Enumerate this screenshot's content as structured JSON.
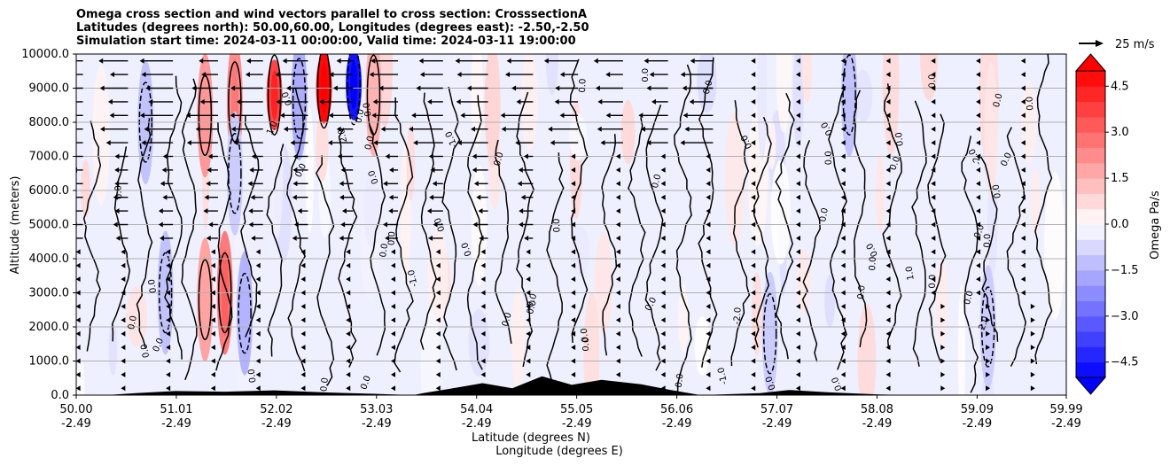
{
  "chart_data": {
    "type": "contourf",
    "title_lines": [
      "Omega cross section and wind vectors parallel to cross section: CrosssectionA",
      "Latitudes (degrees north): 50.00,60.00, Longitudes (degrees east): -2.50,-2.50",
      "Simulation start time: 2024-03-11 00:00:00, Valid time: 2024-03-11 19:00:00"
    ],
    "ylabel": "Altitude (meters)",
    "xlabel_lines": [
      "Latitude (degrees N)",
      "Longitude (degrees E)"
    ],
    "ylim": [
      0,
      10000
    ],
    "yticks": [
      0,
      1000,
      2000,
      3000,
      4000,
      5000,
      6000,
      7000,
      8000,
      9000,
      10000
    ],
    "ytick_labels": [
      "0.0",
      "1000.0",
      "2000.0",
      "3000.0",
      "4000.0",
      "5000.0",
      "6000.0",
      "7000.0",
      "8000.0",
      "9000.0",
      "10000.0"
    ],
    "xlim": [
      50.0,
      59.99
    ],
    "xticks": [
      50.0,
      51.01,
      52.02,
      53.03,
      54.04,
      55.05,
      56.06,
      57.07,
      58.08,
      59.09,
      59.99
    ],
    "xtick_lat_labels": [
      "50.00",
      "51.01",
      "52.02",
      "53.03",
      "54.04",
      "55.05",
      "56.06",
      "57.07",
      "58.08",
      "59.09",
      "59.99"
    ],
    "xtick_lon_labels": [
      "-2.49",
      "-2.49",
      "-2.49",
      "-2.49",
      "-2.49",
      "-2.49",
      "-2.49",
      "-2.49",
      "-2.49",
      "-2.49",
      "-2.49"
    ],
    "grid": "horizontal",
    "colorbar": {
      "label": "Omega Pa/s",
      "min": -5.0,
      "max": 5.0,
      "ticks": [
        4.5,
        3.0,
        1.5,
        0.0,
        -1.5,
        -3.0,
        -4.5
      ],
      "tick_labels": [
        "4.5",
        "3.0",
        "1.5",
        "0.0",
        "−1.5",
        "−3.0",
        "−4.5"
      ],
      "extend": "both",
      "cmap": "bwr"
    },
    "quiver_key": {
      "label": "25 m/s",
      "speed": 25
    },
    "contour_labels": [
      "0.0",
      "-1.0",
      "1.0",
      "2.0",
      "-2.0"
    ],
    "omega_features": [
      {
        "lat": 50.9,
        "alt": 3000,
        "value": -1.2
      },
      {
        "lat": 51.3,
        "alt": 2800,
        "value": 1.8
      },
      {
        "lat": 51.5,
        "alt": 3000,
        "value": 2.6
      },
      {
        "lat": 51.7,
        "alt": 2400,
        "value": -1.5
      },
      {
        "lat": 51.3,
        "alt": 8200,
        "value": 2.0
      },
      {
        "lat": 51.6,
        "alt": 8600,
        "value": 2.2
      },
      {
        "lat": 52.0,
        "alt": 8800,
        "value": 3.6
      },
      {
        "lat": 52.25,
        "alt": 8700,
        "value": -1.6
      },
      {
        "lat": 52.5,
        "alt": 9000,
        "value": 4.8
      },
      {
        "lat": 52.8,
        "alt": 9100,
        "value": -4.6
      },
      {
        "lat": 53.0,
        "alt": 8800,
        "value": 1.5
      },
      {
        "lat": 50.7,
        "alt": 8000,
        "value": -1.2
      },
      {
        "lat": 51.6,
        "alt": 6500,
        "value": -1.0
      },
      {
        "lat": 54.2,
        "alt": 8500,
        "value": 0.8
      },
      {
        "lat": 55.2,
        "alt": 1200,
        "value": 0.6
      },
      {
        "lat": 57.8,
        "alt": 8800,
        "value": -1.2
      },
      {
        "lat": 57.0,
        "alt": 1800,
        "value": -1.0
      },
      {
        "lat": 59.2,
        "alt": 2000,
        "value": -1.0
      }
    ],
    "terrain": [
      {
        "lat": 50.3,
        "alt": 0
      },
      {
        "lat": 50.6,
        "alt": 60
      },
      {
        "lat": 51.0,
        "alt": 120
      },
      {
        "lat": 51.5,
        "alt": 100
      },
      {
        "lat": 52.0,
        "alt": 140
      },
      {
        "lat": 52.5,
        "alt": 80
      },
      {
        "lat": 53.0,
        "alt": 40
      },
      {
        "lat": 53.4,
        "alt": 0
      },
      {
        "lat": 53.5,
        "alt": 60
      },
      {
        "lat": 53.8,
        "alt": 200
      },
      {
        "lat": 54.1,
        "alt": 350
      },
      {
        "lat": 54.4,
        "alt": 200
      },
      {
        "lat": 54.7,
        "alt": 550
      },
      {
        "lat": 55.0,
        "alt": 300
      },
      {
        "lat": 55.3,
        "alt": 450
      },
      {
        "lat": 55.7,
        "alt": 320
      },
      {
        "lat": 56.0,
        "alt": 150
      },
      {
        "lat": 56.3,
        "alt": 0
      },
      {
        "lat": 56.9,
        "alt": 60
      },
      {
        "lat": 57.2,
        "alt": 150
      },
      {
        "lat": 57.6,
        "alt": 80
      },
      {
        "lat": 58.1,
        "alt": 20
      },
      {
        "lat": 58.4,
        "alt": 0
      }
    ]
  }
}
